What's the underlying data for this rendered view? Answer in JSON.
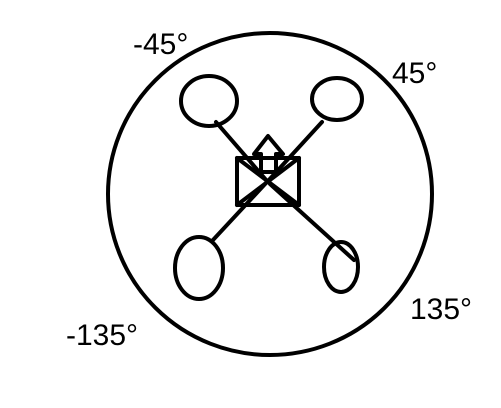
{
  "labels": {
    "front_left": "-45°",
    "front_right": "45°",
    "rear_left": "-135°",
    "rear_right": "135°"
  },
  "colors": {
    "line": "#000000",
    "background": "#ffffff"
  },
  "icons": {
    "heading": "up-arrow-icon"
  }
}
